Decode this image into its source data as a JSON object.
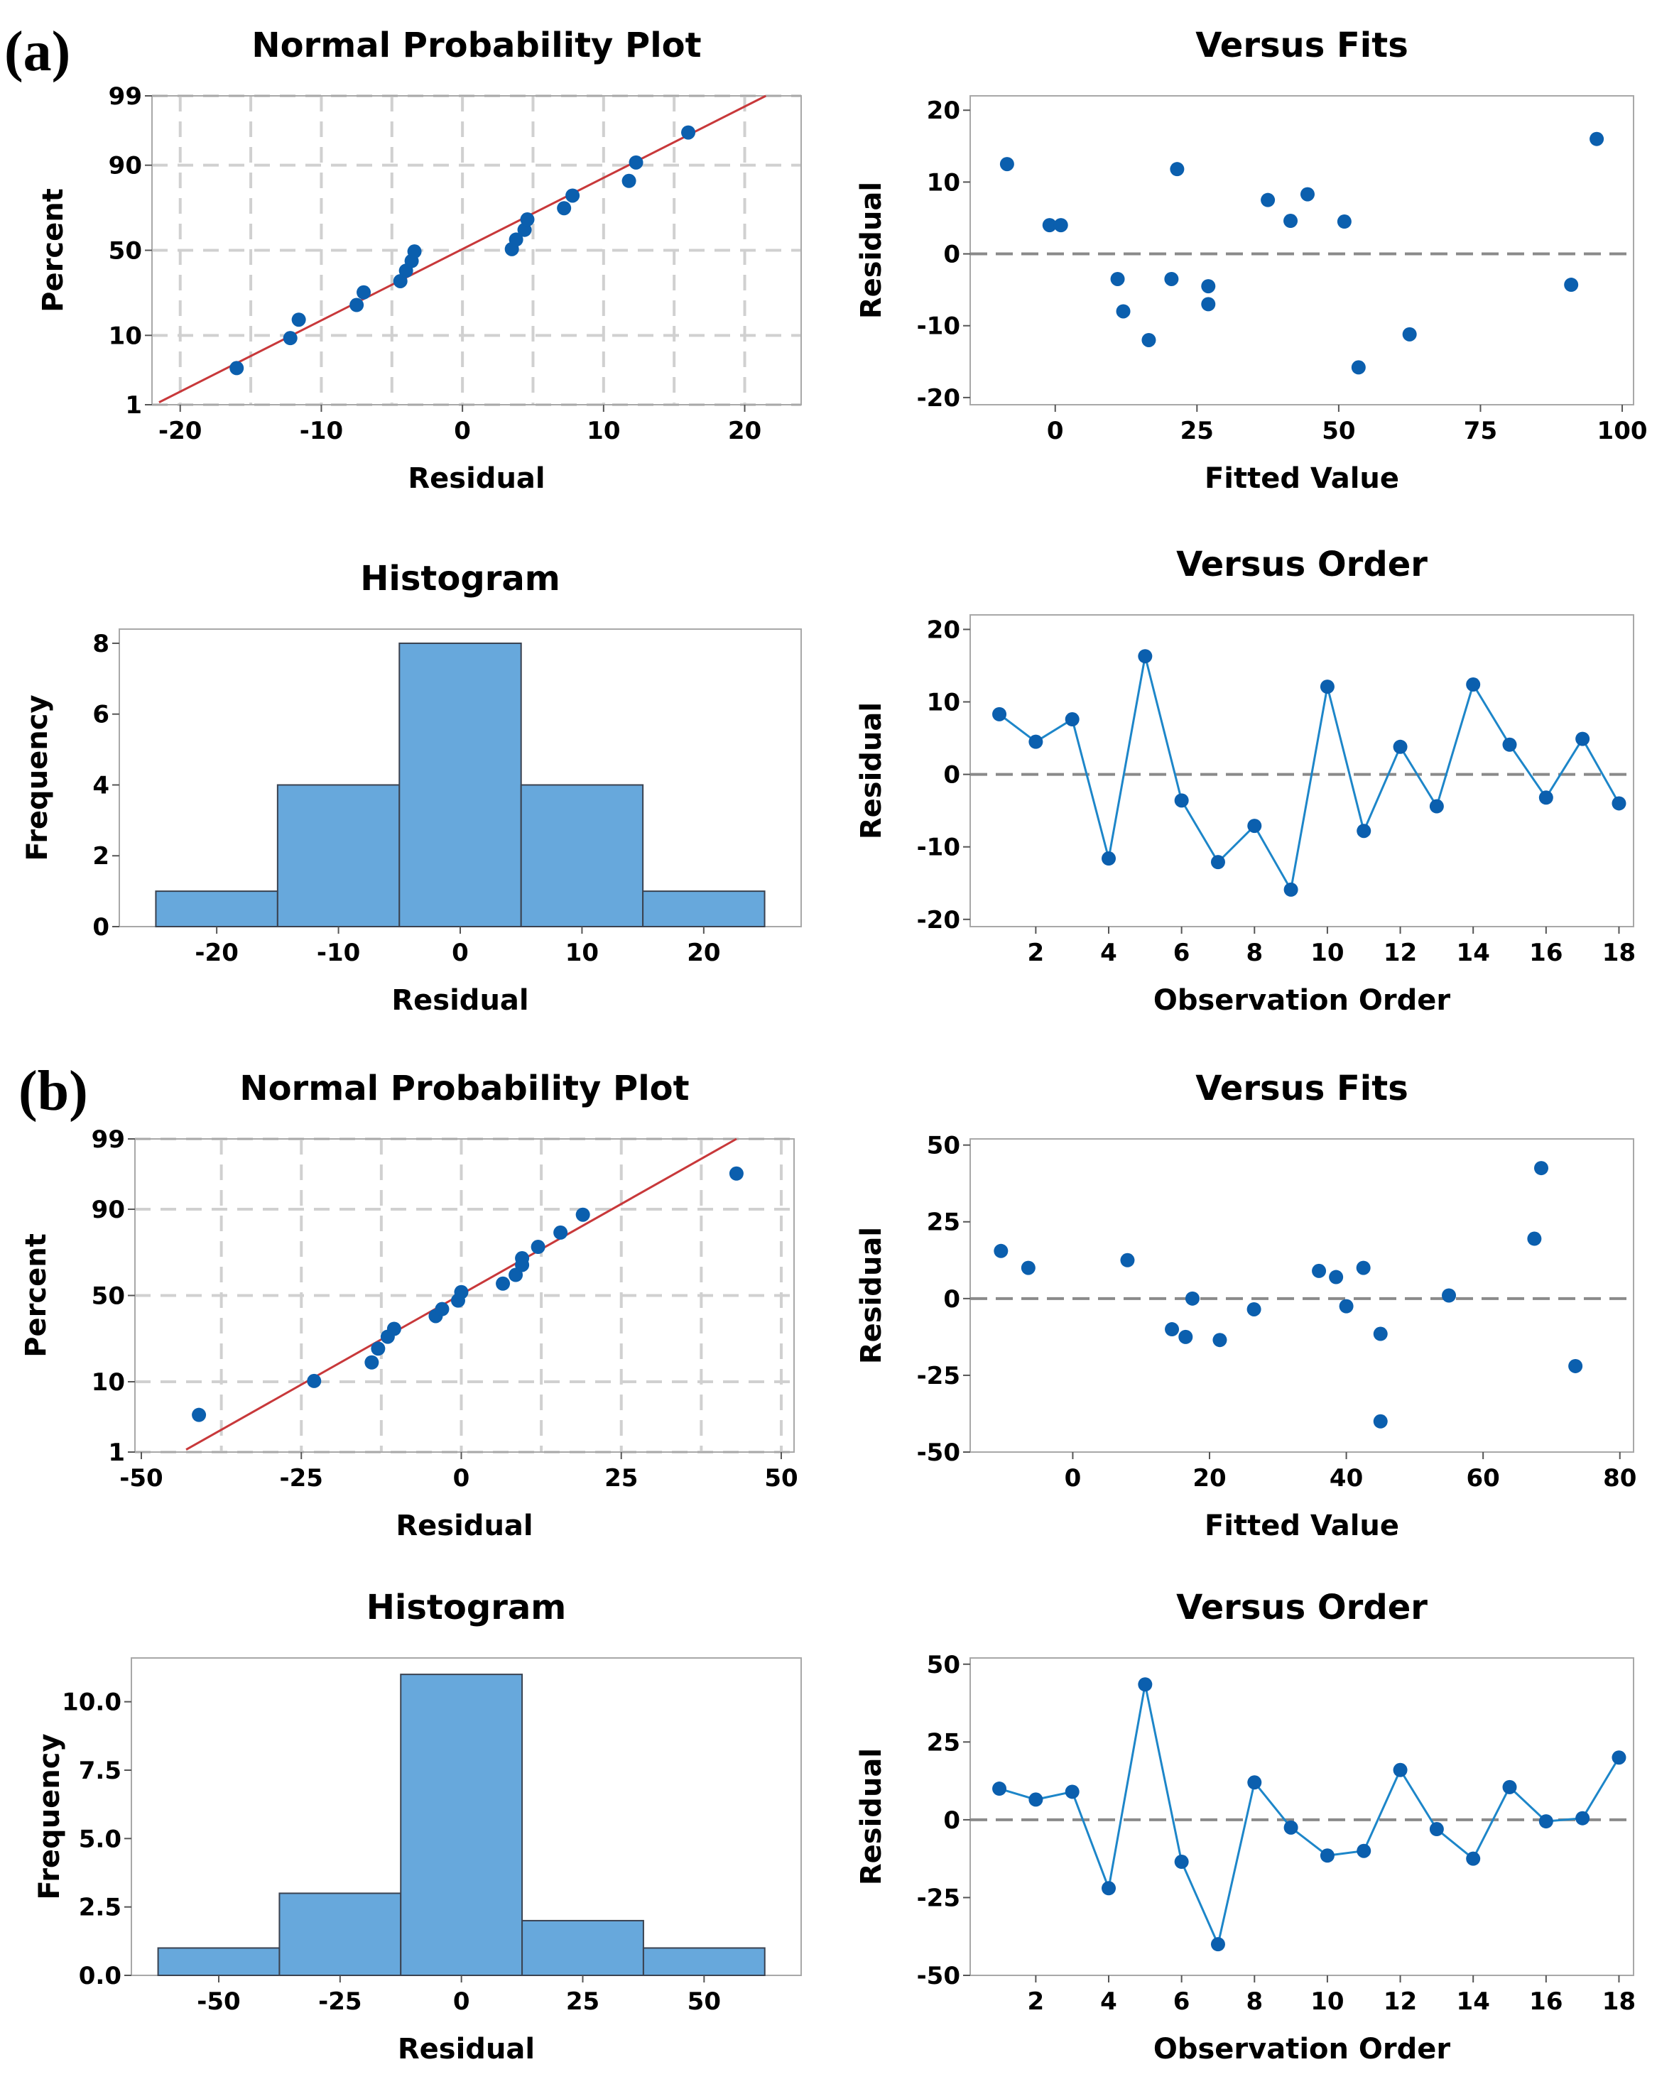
{
  "labels": {
    "a": "(a)",
    "b": "(b)"
  },
  "colors": {
    "point": "#0b5fae",
    "line": "#1d86c9",
    "fit": "#c8383a",
    "bar_fill": "#67a8dc",
    "bar_edge": "#3a4250",
    "grid": "#d0d0d0",
    "ref": "#8a8a8a",
    "frame": "#a8a8a8"
  },
  "chart_data": [
    {
      "id": "a-npp",
      "type": "scatter",
      "title": "Normal Probability Plot",
      "xlabel": "Residual",
      "ylabel": "Percent",
      "xlim": [
        -22,
        24
      ],
      "xticks": [
        -20,
        -10,
        0,
        10,
        20
      ],
      "yscale": "probability",
      "ylim": [
        1,
        99
      ],
      "yticks": [
        1,
        10,
        50,
        90,
        99
      ],
      "vgrid": [
        -20,
        -15,
        -10,
        -5,
        0,
        5,
        10,
        15,
        20
      ],
      "hgrid": [
        1,
        10,
        50,
        90,
        99
      ],
      "fit_line": {
        "x": [
          -21.5,
          21.5
        ],
        "p": [
          1.1,
          99
        ]
      },
      "points": [
        {
          "x": -16.0,
          "p": 3.8
        },
        {
          "x": -12.2,
          "p": 9.3
        },
        {
          "x": -11.6,
          "p": 14.8
        },
        {
          "x": -7.5,
          "p": 20.5
        },
        {
          "x": -7.0,
          "p": 26.3
        },
        {
          "x": -4.4,
          "p": 32.1
        },
        {
          "x": -4.0,
          "p": 37.9
        },
        {
          "x": -3.6,
          "p": 43.6
        },
        {
          "x": -3.4,
          "p": 49.3
        },
        {
          "x": 3.5,
          "p": 50.7
        },
        {
          "x": 3.8,
          "p": 56.4
        },
        {
          "x": 4.4,
          "p": 62.1
        },
        {
          "x": 4.6,
          "p": 67.9
        },
        {
          "x": 7.2,
          "p": 73.7
        },
        {
          "x": 7.8,
          "p": 79.5
        },
        {
          "x": 11.8,
          "p": 85.2
        },
        {
          "x": 12.3,
          "p": 90.7
        },
        {
          "x": 16.0,
          "p": 96.2
        }
      ]
    },
    {
      "id": "a-fits",
      "type": "scatter",
      "title": "Versus Fits",
      "xlabel": "Fitted Value",
      "ylabel": "Residual",
      "xlim": [
        -15,
        102
      ],
      "xticks": [
        0,
        25,
        50,
        75,
        100
      ],
      "ylim": [
        -21,
        22
      ],
      "yticks": [
        -20,
        -10,
        0,
        10,
        20
      ],
      "ref_y": 0,
      "points": [
        {
          "x": -8.5,
          "y": 12.5
        },
        {
          "x": -1.0,
          "y": 4.0
        },
        {
          "x": 1.0,
          "y": 4.0
        },
        {
          "x": 11.0,
          "y": -3.5
        },
        {
          "x": 12.0,
          "y": -8.0
        },
        {
          "x": 16.5,
          "y": -12.0
        },
        {
          "x": 20.5,
          "y": -3.5
        },
        {
          "x": 21.5,
          "y": 11.8
        },
        {
          "x": 27.0,
          "y": -4.5
        },
        {
          "x": 27.0,
          "y": -7.0
        },
        {
          "x": 37.5,
          "y": 7.5
        },
        {
          "x": 41.5,
          "y": 4.6
        },
        {
          "x": 44.5,
          "y": 8.3
        },
        {
          "x": 51.0,
          "y": 4.5
        },
        {
          "x": 53.5,
          "y": -15.8
        },
        {
          "x": 62.5,
          "y": -11.2
        },
        {
          "x": 91.0,
          "y": -4.3
        },
        {
          "x": 95.5,
          "y": 16.0
        }
      ]
    },
    {
      "id": "a-hist",
      "type": "bar",
      "title": "Histogram",
      "xlabel": "Residual",
      "ylabel": "Frequency",
      "xlim": [
        -28,
        28
      ],
      "xticks": [
        -20,
        -10,
        0,
        10,
        20
      ],
      "ylim": [
        0,
        8.4
      ],
      "yticks": [
        0,
        2,
        4,
        6,
        8
      ],
      "bins": [
        {
          "x0": -25,
          "x1": -15,
          "count": 1
        },
        {
          "x0": -15,
          "x1": -5,
          "count": 4
        },
        {
          "x0": -5,
          "x1": 5,
          "count": 8
        },
        {
          "x0": 5,
          "x1": 15,
          "count": 4
        },
        {
          "x0": 15,
          "x1": 25,
          "count": 1
        }
      ]
    },
    {
      "id": "a-order",
      "type": "line",
      "title": "Versus Order",
      "xlabel": "Observation Order",
      "ylabel": "Residual",
      "xlim": [
        0.2,
        18.4
      ],
      "xticks": [
        2,
        4,
        6,
        8,
        10,
        12,
        14,
        16,
        18
      ],
      "ylim": [
        -21,
        22
      ],
      "yticks": [
        -20,
        -10,
        0,
        10,
        20
      ],
      "ref_y": 0,
      "x": [
        1,
        2,
        3,
        4,
        5,
        6,
        7,
        8,
        9,
        10,
        11,
        12,
        13,
        14,
        15,
        16,
        17,
        18
      ],
      "y": [
        8.3,
        4.5,
        7.6,
        -11.6,
        16.3,
        -3.6,
        -12.1,
        -7.1,
        -15.9,
        12.1,
        -7.8,
        3.8,
        -4.4,
        12.4,
        4.1,
        -3.2,
        4.9,
        -4.0
      ]
    },
    {
      "id": "b-npp",
      "type": "scatter",
      "title": "Normal Probability Plot",
      "xlabel": "Residual",
      "ylabel": "Percent",
      "xlim": [
        -51,
        52
      ],
      "xticks": [
        -50,
        -25,
        0,
        25,
        50
      ],
      "yscale": "probability",
      "ylim": [
        1,
        99
      ],
      "yticks": [
        1,
        10,
        50,
        90,
        99
      ],
      "vgrid": [
        -37.5,
        -25,
        -12.5,
        0,
        12.5,
        25,
        37.5,
        50
      ],
      "hgrid": [
        1,
        10,
        50,
        90,
        99
      ],
      "fit_line": {
        "x": [
          -43,
          43
        ],
        "p": [
          1.1,
          99
        ]
      },
      "points": [
        {
          "x": -41.0,
          "p": 3.8
        },
        {
          "x": -23.0,
          "p": 10.2
        },
        {
          "x": -14.0,
          "p": 16.0
        },
        {
          "x": -13.0,
          "p": 21.5
        },
        {
          "x": -11.5,
          "p": 27.0
        },
        {
          "x": -10.5,
          "p": 31.0
        },
        {
          "x": -4.0,
          "p": 38.0
        },
        {
          "x": -3.0,
          "p": 42.0
        },
        {
          "x": -0.5,
          "p": 47.0
        },
        {
          "x": 0.0,
          "p": 52.0
        },
        {
          "x": 6.5,
          "p": 57.0
        },
        {
          "x": 8.5,
          "p": 62.0
        },
        {
          "x": 9.5,
          "p": 67.5
        },
        {
          "x": 9.5,
          "p": 71.0
        },
        {
          "x": 12.0,
          "p": 76.5
        },
        {
          "x": 15.5,
          "p": 82.5
        },
        {
          "x": 19.0,
          "p": 88.5
        },
        {
          "x": 43.0,
          "p": 96.5
        }
      ]
    },
    {
      "id": "b-fits",
      "type": "scatter",
      "title": "Versus Fits",
      "xlabel": "Fitted Value",
      "ylabel": "Residual",
      "xlim": [
        -15,
        82
      ],
      "xticks": [
        0,
        20,
        40,
        60,
        80
      ],
      "ylim": [
        -50,
        52
      ],
      "yticks": [
        -50,
        -25,
        0,
        25,
        50
      ],
      "ref_y": 0,
      "points": [
        {
          "x": -10.5,
          "y": 15.5
        },
        {
          "x": -6.5,
          "y": 10.0
        },
        {
          "x": 8.0,
          "y": 12.5
        },
        {
          "x": 14.5,
          "y": -10.0
        },
        {
          "x": 16.5,
          "y": -12.5
        },
        {
          "x": 17.5,
          "y": 0.0
        },
        {
          "x": 21.5,
          "y": -13.5
        },
        {
          "x": 26.5,
          "y": -3.5
        },
        {
          "x": 36.0,
          "y": 9.0
        },
        {
          "x": 38.5,
          "y": 7.0
        },
        {
          "x": 40.0,
          "y": -2.5
        },
        {
          "x": 42.5,
          "y": 10.0
        },
        {
          "x": 45.0,
          "y": -11.5
        },
        {
          "x": 45.0,
          "y": -40.0
        },
        {
          "x": 55.0,
          "y": 1.0
        },
        {
          "x": 67.5,
          "y": 19.5
        },
        {
          "x": 68.5,
          "y": 42.5
        },
        {
          "x": 73.5,
          "y": -22.0
        }
      ]
    },
    {
      "id": "b-hist",
      "type": "bar",
      "title": "Histogram",
      "xlabel": "Residual",
      "ylabel": "Frequency",
      "xlim": [
        -68,
        70
      ],
      "xticks": [
        -50,
        -25,
        0,
        25,
        50
      ],
      "ylim": [
        0,
        11.6
      ],
      "yticks": [
        "0.0",
        "2.5",
        "5.0",
        "7.5",
        "10.0"
      ],
      "bins": [
        {
          "x0": -62.5,
          "x1": -37.5,
          "count": 1
        },
        {
          "x0": -37.5,
          "x1": -12.5,
          "count": 3
        },
        {
          "x0": -12.5,
          "x1": 12.5,
          "count": 11
        },
        {
          "x0": 12.5,
          "x1": 37.5,
          "count": 2
        },
        {
          "x0": 37.5,
          "x1": 62.5,
          "count": 1
        }
      ]
    },
    {
      "id": "b-order",
      "type": "line",
      "title": "Versus Order",
      "xlabel": "Observation Order",
      "ylabel": "Residual",
      "xlim": [
        0.2,
        18.4
      ],
      "xticks": [
        2,
        4,
        6,
        8,
        10,
        12,
        14,
        16,
        18
      ],
      "ylim": [
        -50,
        52
      ],
      "yticks": [
        -50,
        -25,
        0,
        25,
        50
      ],
      "ref_y": 0,
      "x": [
        1,
        2,
        3,
        4,
        5,
        6,
        7,
        8,
        9,
        10,
        11,
        12,
        13,
        14,
        15,
        16,
        17,
        18
      ],
      "y": [
        10.0,
        6.5,
        9.0,
        -22.0,
        43.5,
        -13.5,
        -40.0,
        12.0,
        -2.5,
        -11.5,
        -10.0,
        16.0,
        -3.0,
        -12.5,
        10.5,
        -0.5,
        0.5,
        20.0
      ]
    }
  ]
}
